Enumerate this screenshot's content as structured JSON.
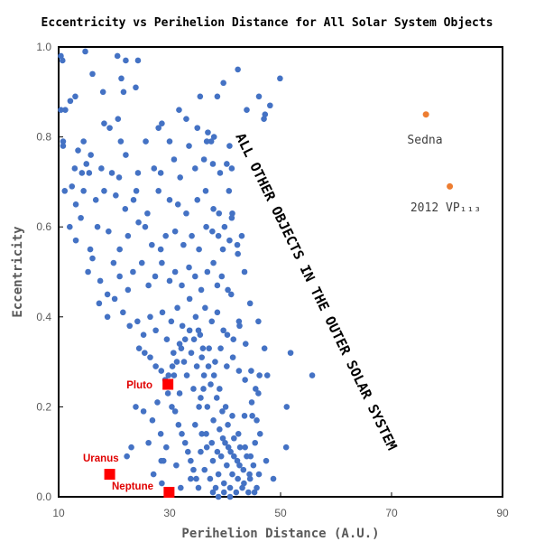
{
  "chart_data": {
    "type": "scatter",
    "title": "Eccentricity vs Perihelion Distance for All Solar System Objects",
    "xlabel": "Perihelion Distance (A.U.)",
    "ylabel": "Eccentricity",
    "xlim": [
      10,
      90
    ],
    "ylim": [
      0,
      1
    ],
    "x_ticks": [
      "10",
      "30",
      "50",
      "70",
      "90"
    ],
    "y_ticks": [
      "0.0",
      "0.2",
      "0.4",
      "0.6",
      "0.8",
      "1.0"
    ],
    "grid": false,
    "series": [
      {
        "color": "#4472c4",
        "points": [
          [
            10.4,
            0.98
          ],
          [
            10.7,
            0.97
          ],
          [
            14.8,
            0.99
          ],
          [
            20.6,
            0.98
          ],
          [
            22.1,
            0.97
          ],
          [
            24.3,
            0.97
          ],
          [
            16.1,
            0.94
          ],
          [
            21.3,
            0.93
          ],
          [
            23.9,
            0.91
          ],
          [
            13.0,
            0.89
          ],
          [
            18.0,
            0.9
          ],
          [
            21.7,
            0.9
          ],
          [
            35.5,
            0.89
          ],
          [
            38.6,
            0.89
          ],
          [
            39.7,
            0.92
          ],
          [
            42.3,
            0.95
          ],
          [
            46.1,
            0.89
          ],
          [
            49.9,
            0.93
          ],
          [
            10.4,
            0.86
          ],
          [
            11.2,
            0.86
          ],
          [
            12.1,
            0.88
          ],
          [
            28.6,
            0.83
          ],
          [
            31.7,
            0.86
          ],
          [
            33.0,
            0.84
          ],
          [
            36.9,
            0.81
          ],
          [
            43.9,
            0.86
          ],
          [
            47.2,
            0.85
          ],
          [
            48.1,
            0.87
          ],
          [
            47.0,
            0.84
          ],
          [
            10.8,
            0.79
          ],
          [
            10.8,
            0.78
          ],
          [
            13.5,
            0.77
          ],
          [
            14.5,
            0.79
          ],
          [
            15.8,
            0.76
          ],
          [
            18.2,
            0.83
          ],
          [
            19.2,
            0.82
          ],
          [
            20.7,
            0.84
          ],
          [
            21.2,
            0.79
          ],
          [
            22.1,
            0.76
          ],
          [
            25.7,
            0.79
          ],
          [
            28.0,
            0.82
          ],
          [
            30.0,
            0.79
          ],
          [
            33.5,
            0.78
          ],
          [
            35.0,
            0.82
          ],
          [
            36.7,
            0.79
          ],
          [
            37.5,
            0.79
          ],
          [
            38.0,
            0.8
          ],
          [
            12.9,
            0.73
          ],
          [
            14.2,
            0.72
          ],
          [
            15.0,
            0.74
          ],
          [
            15.5,
            0.72
          ],
          [
            17.7,
            0.73
          ],
          [
            19.6,
            0.72
          ],
          [
            20.9,
            0.71
          ],
          [
            24.3,
            0.72
          ],
          [
            27.2,
            0.73
          ],
          [
            28.4,
            0.72
          ],
          [
            30.8,
            0.75
          ],
          [
            31.9,
            0.71
          ],
          [
            34.6,
            0.73
          ],
          [
            36.2,
            0.75
          ],
          [
            37.8,
            0.74
          ],
          [
            39.1,
            0.72
          ],
          [
            40.3,
            0.74
          ],
          [
            41.2,
            0.73
          ],
          [
            11.1,
            0.68
          ],
          [
            12.4,
            0.69
          ],
          [
            13.1,
            0.65
          ],
          [
            14.5,
            0.68
          ],
          [
            16.7,
            0.66
          ],
          [
            18.2,
            0.68
          ],
          [
            20.3,
            0.67
          ],
          [
            22.0,
            0.64
          ],
          [
            23.5,
            0.66
          ],
          [
            24.0,
            0.68
          ],
          [
            26.0,
            0.63
          ],
          [
            28.0,
            0.68
          ],
          [
            30.0,
            0.66
          ],
          [
            31.5,
            0.65
          ],
          [
            33.0,
            0.63
          ],
          [
            35.0,
            0.66
          ],
          [
            36.5,
            0.68
          ],
          [
            37.9,
            0.64
          ],
          [
            38.9,
            0.63
          ],
          [
            39.9,
            0.6
          ],
          [
            41.2,
            0.62
          ],
          [
            12.0,
            0.6
          ],
          [
            13.1,
            0.57
          ],
          [
            14.0,
            0.62
          ],
          [
            15.7,
            0.55
          ],
          [
            17.0,
            0.6
          ],
          [
            19.0,
            0.59
          ],
          [
            21.0,
            0.55
          ],
          [
            22.5,
            0.58
          ],
          [
            24.4,
            0.61
          ],
          [
            25.6,
            0.6
          ],
          [
            26.8,
            0.56
          ],
          [
            28.4,
            0.55
          ],
          [
            29.3,
            0.58
          ],
          [
            31.0,
            0.59
          ],
          [
            32.5,
            0.56
          ],
          [
            34.0,
            0.58
          ],
          [
            35.3,
            0.55
          ],
          [
            36.6,
            0.6
          ],
          [
            37.7,
            0.59
          ],
          [
            38.8,
            0.58
          ],
          [
            39.6,
            0.55
          ],
          [
            40.8,
            0.57
          ],
          [
            42.2,
            0.56
          ],
          [
            15.3,
            0.5
          ],
          [
            16.1,
            0.53
          ],
          [
            17.5,
            0.48
          ],
          [
            18.8,
            0.45
          ],
          [
            19.9,
            0.52
          ],
          [
            21.0,
            0.49
          ],
          [
            22.5,
            0.46
          ],
          [
            23.4,
            0.5
          ],
          [
            25.0,
            0.52
          ],
          [
            26.2,
            0.47
          ],
          [
            27.4,
            0.49
          ],
          [
            28.6,
            0.52
          ],
          [
            30.0,
            0.48
          ],
          [
            31.0,
            0.5
          ],
          [
            32.2,
            0.47
          ],
          [
            33.5,
            0.51
          ],
          [
            34.6,
            0.49
          ],
          [
            35.7,
            0.46
          ],
          [
            36.8,
            0.5
          ],
          [
            37.9,
            0.52
          ],
          [
            38.6,
            0.47
          ],
          [
            39.4,
            0.49
          ],
          [
            40.5,
            0.46
          ],
          [
            41.1,
            0.45
          ],
          [
            17.3,
            0.43
          ],
          [
            18.8,
            0.4
          ],
          [
            20.1,
            0.44
          ],
          [
            21.6,
            0.41
          ],
          [
            22.8,
            0.38
          ],
          [
            24.2,
            0.39
          ],
          [
            25.3,
            0.36
          ],
          [
            26.5,
            0.4
          ],
          [
            27.5,
            0.37
          ],
          [
            28.7,
            0.41
          ],
          [
            29.5,
            0.35
          ],
          [
            30.3,
            0.39
          ],
          [
            31.4,
            0.42
          ],
          [
            32.3,
            0.38
          ],
          [
            33.6,
            0.44
          ],
          [
            34.7,
            0.4
          ],
          [
            35.5,
            0.36
          ],
          [
            36.4,
            0.42
          ],
          [
            37.6,
            0.39
          ],
          [
            38.6,
            0.41
          ],
          [
            39.7,
            0.37
          ],
          [
            40.4,
            0.36
          ],
          [
            41.5,
            0.35
          ],
          [
            42.6,
            0.38
          ],
          [
            43.7,
            0.34
          ],
          [
            46.0,
            0.39
          ],
          [
            47.1,
            0.33
          ],
          [
            24.5,
            0.33
          ],
          [
            25.5,
            0.32
          ],
          [
            26.5,
            0.31
          ],
          [
            27.5,
            0.29
          ],
          [
            28.5,
            0.28
          ],
          [
            29.2,
            0.26
          ],
          [
            29.7,
            0.23
          ],
          [
            30.4,
            0.2
          ],
          [
            31.0,
            0.19
          ],
          [
            31.6,
            0.16
          ],
          [
            32.2,
            0.14
          ],
          [
            32.8,
            0.12
          ],
          [
            33.3,
            0.1
          ],
          [
            33.8,
            0.08
          ],
          [
            34.3,
            0.06
          ],
          [
            34.8,
            0.04
          ],
          [
            35.2,
            0.02
          ],
          [
            30.7,
            0.32
          ],
          [
            31.8,
            0.34
          ],
          [
            32.6,
            0.3
          ],
          [
            33.1,
            0.27
          ],
          [
            33.9,
            0.32
          ],
          [
            34.3,
            0.24
          ],
          [
            34.9,
            0.29
          ],
          [
            35.6,
            0.22
          ],
          [
            36.2,
            0.27
          ],
          [
            36.8,
            0.2
          ],
          [
            37.4,
            0.25
          ],
          [
            37.9,
            0.17
          ],
          [
            38.5,
            0.22
          ],
          [
            39.0,
            0.15
          ],
          [
            39.5,
            0.19
          ],
          [
            40.0,
            0.12
          ],
          [
            40.5,
            0.16
          ],
          [
            41.0,
            0.1
          ],
          [
            41.6,
            0.13
          ],
          [
            42.2,
            0.08
          ],
          [
            42.7,
            0.11
          ],
          [
            43.3,
            0.06
          ],
          [
            43.9,
            0.09
          ],
          [
            44.5,
            0.04
          ],
          [
            45.1,
            0.07
          ],
          [
            45.7,
            0.02
          ],
          [
            46.1,
            0.05
          ],
          [
            35.8,
            0.31
          ],
          [
            37.1,
            0.33
          ],
          [
            38.2,
            0.3
          ],
          [
            39.2,
            0.33
          ],
          [
            40.3,
            0.29
          ],
          [
            41.4,
            0.31
          ],
          [
            42.5,
            0.28
          ],
          [
            43.6,
            0.26
          ],
          [
            44.7,
            0.28
          ],
          [
            45.5,
            0.24
          ],
          [
            46.2,
            0.27
          ],
          [
            46.0,
            0.23
          ],
          [
            44.8,
            0.21
          ],
          [
            43.5,
            0.18
          ],
          [
            42.4,
            0.14
          ],
          [
            41.3,
            0.18
          ],
          [
            40.1,
            0.2
          ],
          [
            39.0,
            0.24
          ],
          [
            38.0,
            0.27
          ],
          [
            37.0,
            0.29
          ],
          [
            36.1,
            0.24
          ],
          [
            35.3,
            0.2
          ],
          [
            34.6,
            0.16
          ],
          [
            35.8,
            0.14
          ],
          [
            36.7,
            0.11
          ],
          [
            37.8,
            0.08
          ],
          [
            38.8,
            0.05
          ],
          [
            39.8,
            0.03
          ],
          [
            40.9,
            0.02
          ],
          [
            42.0,
            0.01
          ],
          [
            43.1,
            0.02
          ],
          [
            44.2,
            0.01
          ],
          [
            45.3,
            0.01
          ],
          [
            36.3,
            0.06
          ],
          [
            37.3,
            0.04
          ],
          [
            38.3,
            0.02
          ],
          [
            39.3,
            0.09
          ],
          [
            40.3,
            0.07
          ],
          [
            41.3,
            0.05
          ],
          [
            42.3,
            0.04
          ],
          [
            43.4,
            0.03
          ],
          [
            44.4,
            0.05
          ],
          [
            35.6,
            0.1
          ],
          [
            36.6,
            0.14
          ],
          [
            37.6,
            0.12
          ],
          [
            38.6,
            0.1
          ],
          [
            39.6,
            0.13
          ],
          [
            40.6,
            0.11
          ],
          [
            41.6,
            0.09
          ],
          [
            42.6,
            0.07
          ],
          [
            43.6,
            0.11
          ],
          [
            44.6,
            0.09
          ],
          [
            45.4,
            0.12
          ],
          [
            26.9,
            0.17
          ],
          [
            27.8,
            0.21
          ],
          [
            28.4,
            0.14
          ],
          [
            28.9,
            0.08
          ],
          [
            29.4,
            0.11
          ],
          [
            26.2,
            0.12
          ],
          [
            25.3,
            0.19
          ],
          [
            23.9,
            0.2
          ],
          [
            27.1,
            0.05
          ],
          [
            28.6,
            0.03
          ],
          [
            31.2,
            0.07
          ],
          [
            32.0,
            0.02
          ],
          [
            31.8,
            0.23
          ],
          [
            30.8,
            0.27
          ],
          [
            47.4,
            0.08
          ],
          [
            48.7,
            0.04
          ],
          [
            45.7,
            0.17
          ],
          [
            46.3,
            0.14
          ],
          [
            51.1,
            0.2
          ],
          [
            51.0,
            0.11
          ],
          [
            51.8,
            0.32
          ],
          [
            55.7,
            0.27
          ],
          [
            47.6,
            0.27
          ],
          [
            44.9,
            0.18
          ],
          [
            42.5,
            0.39
          ],
          [
            44.5,
            0.43
          ],
          [
            43.5,
            0.5
          ],
          [
            42.3,
            0.54
          ],
          [
            41.3,
            0.63
          ],
          [
            40.7,
            0.68
          ],
          [
            43.0,
            0.58
          ],
          [
            40.8,
            0.78
          ],
          [
            28.5,
            0.08
          ],
          [
            29.6,
            0.01
          ],
          [
            23.1,
            0.11
          ],
          [
            22.3,
            0.09
          ],
          [
            33.8,
            0.04
          ],
          [
            37.8,
            0.01
          ],
          [
            38.8,
            0.0
          ],
          [
            39.8,
            0.01
          ],
          [
            40.9,
            0.0
          ],
          [
            36.0,
            0.33
          ],
          [
            35.2,
            0.37
          ],
          [
            34.4,
            0.35
          ],
          [
            33.6,
            0.37
          ],
          [
            32.8,
            0.35
          ],
          [
            32.1,
            0.33
          ],
          [
            31.3,
            0.3
          ],
          [
            30.5,
            0.29
          ],
          [
            29.8,
            0.27
          ]
        ]
      },
      {
        "color": "#ed7d31",
        "points": [
          [
            76.2,
            0.85
          ],
          [
            80.5,
            0.69
          ]
        ]
      },
      {
        "color": "#ff0000",
        "points": [
          [
            29.7,
            0.25
          ],
          [
            19.2,
            0.05
          ],
          [
            29.9,
            0.01
          ]
        ]
      }
    ],
    "annotations": [
      {
        "text": "Sedna",
        "x": 76.2,
        "y": 0.85
      },
      {
        "text": "2012 VP₁₁₃",
        "x": 80.5,
        "y": 0.69
      },
      {
        "text": "Pluto",
        "x": 29.7,
        "y": 0.25
      },
      {
        "text": "Uranus",
        "x": 19.2,
        "y": 0.05
      },
      {
        "text": "Neptune",
        "x": 29.9,
        "y": 0.01
      },
      {
        "text": "ALL OTHER OBJECTS IN THE OUTER SOLAR SYSTEM"
      }
    ]
  }
}
